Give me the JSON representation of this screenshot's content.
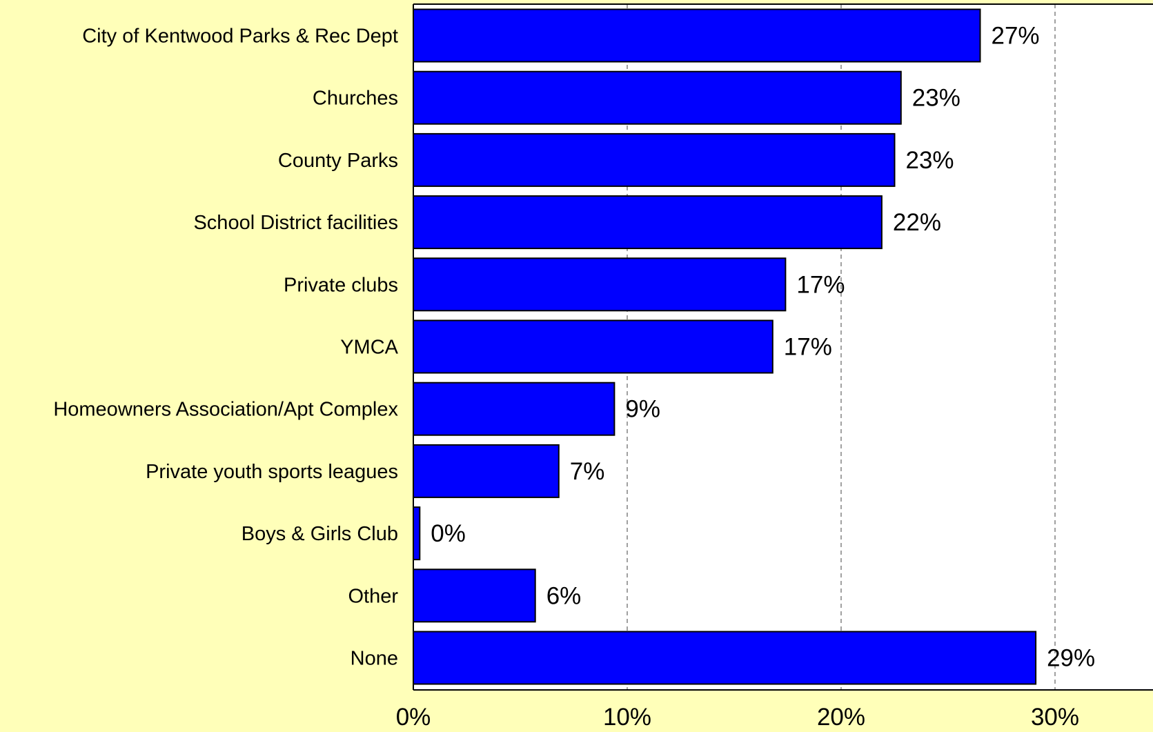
{
  "colors": {
    "page_background": "#ffffb9",
    "plot_background": "#ffffff",
    "bar_fill": "#0000ff",
    "bar_stroke": "#000000",
    "gridline": "#808080"
  },
  "chart_data": {
    "type": "bar",
    "orientation": "horizontal",
    "title": "",
    "xlabel": "",
    "ylabel": "",
    "categories": [
      "City of Kentwood Parks & Rec Dept",
      "Churches",
      "County Parks",
      "School District facilities",
      "Private clubs",
      "YMCA",
      "Homeowners Association/Apt Complex",
      "Private youth sports leagues",
      "Boys & Girls Club",
      "Other",
      "None"
    ],
    "values": [
      26.5,
      22.8,
      22.5,
      21.9,
      17.4,
      16.8,
      9.4,
      6.8,
      0.3,
      5.7,
      29.1
    ],
    "value_labels": [
      "27%",
      "23%",
      "23%",
      "22%",
      "17%",
      "17%",
      "9%",
      "7%",
      "0%",
      "6%",
      "29%"
    ],
    "xlim": [
      0,
      34
    ],
    "x_ticks": [
      0,
      10,
      20,
      30
    ],
    "x_tick_labels": [
      "0%",
      "10%",
      "20%",
      "30%"
    ],
    "grid": "vertical dashed",
    "legend": "none"
  }
}
